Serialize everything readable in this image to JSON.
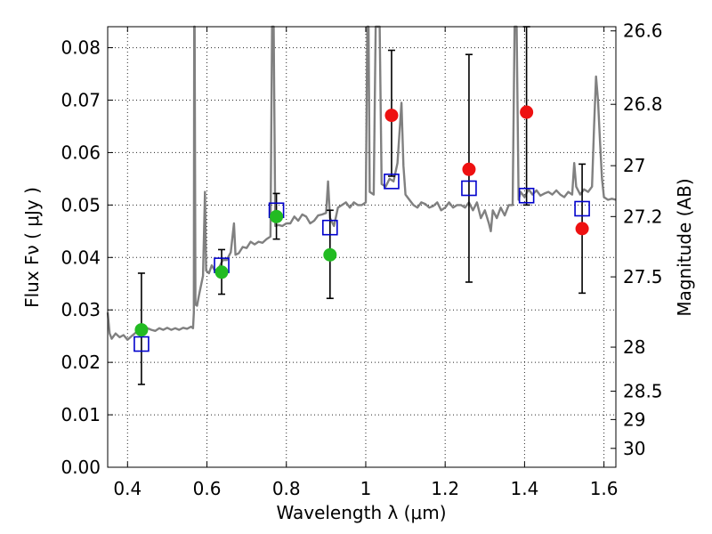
{
  "chart_data": {
    "type": "scatter",
    "xlabel": "Wavelength  λ (μm)",
    "ylabel": "Flux  Fν  ( μJy )",
    "y2label": "Magnitude (AB)",
    "xlim": [
      0.35,
      1.63
    ],
    "ylim": [
      0.0,
      0.084
    ],
    "grid": true,
    "x_ticks": [
      0.4,
      0.6,
      0.8,
      1.0,
      1.2,
      1.4,
      1.6
    ],
    "x_tick_labels": [
      "0.4",
      "0.6",
      "0.8",
      "1",
      "1.2",
      "1.4",
      "1.6"
    ],
    "y_ticks": [
      0.0,
      0.01,
      0.02,
      0.03,
      0.04,
      0.05,
      0.06,
      0.07,
      0.08
    ],
    "y_tick_labels": [
      "0.00",
      "0.01",
      "0.02",
      "0.03",
      "0.04",
      "0.05",
      "0.06",
      "0.07",
      "0.08"
    ],
    "right_axis_ticks": [
      {
        "label": "26.6",
        "flux": 0.0832
      },
      {
        "label": "26.8",
        "flux": 0.0692
      },
      {
        "label": "27",
        "flux": 0.0575
      },
      {
        "label": "27.2",
        "flux": 0.0478
      },
      {
        "label": "27.5",
        "flux": 0.0363
      },
      {
        "label": "28",
        "flux": 0.0229
      },
      {
        "label": "28.5",
        "flux": 0.0145
      },
      {
        "label": "29",
        "flux": 0.0091
      },
      {
        "label": "30",
        "flux": 0.0036
      }
    ],
    "series": [
      {
        "kind": "spectrum",
        "color": "#808080",
        "points": [
          [
            0.35,
            0.0295
          ],
          [
            0.355,
            0.0255
          ],
          [
            0.36,
            0.0245
          ],
          [
            0.37,
            0.0255
          ],
          [
            0.38,
            0.0248
          ],
          [
            0.39,
            0.0252
          ],
          [
            0.4,
            0.0243
          ],
          [
            0.41,
            0.025
          ],
          [
            0.42,
            0.0256
          ],
          [
            0.43,
            0.0262
          ],
          [
            0.44,
            0.0258
          ],
          [
            0.45,
            0.0265
          ],
          [
            0.46,
            0.0262
          ],
          [
            0.47,
            0.026
          ],
          [
            0.48,
            0.0265
          ],
          [
            0.49,
            0.0262
          ],
          [
            0.5,
            0.0266
          ],
          [
            0.51,
            0.0262
          ],
          [
            0.52,
            0.0265
          ],
          [
            0.53,
            0.0262
          ],
          [
            0.54,
            0.0266
          ],
          [
            0.55,
            0.0264
          ],
          [
            0.56,
            0.0268
          ],
          [
            0.565,
            0.0265
          ],
          [
            0.567,
            0.0295
          ],
          [
            0.568,
            0.084
          ],
          [
            0.569,
            0.084
          ],
          [
            0.571,
            0.031
          ],
          [
            0.575,
            0.0308
          ],
          [
            0.58,
            0.0328
          ],
          [
            0.59,
            0.0365
          ],
          [
            0.595,
            0.0525
          ],
          [
            0.598,
            0.0375
          ],
          [
            0.605,
            0.037
          ],
          [
            0.612,
            0.0385
          ],
          [
            0.62,
            0.0375
          ],
          [
            0.63,
            0.038
          ],
          [
            0.64,
            0.0395
          ],
          [
            0.65,
            0.0395
          ],
          [
            0.66,
            0.041
          ],
          [
            0.668,
            0.0465
          ],
          [
            0.672,
            0.0405
          ],
          [
            0.68,
            0.0408
          ],
          [
            0.69,
            0.042
          ],
          [
            0.7,
            0.0418
          ],
          [
            0.71,
            0.043
          ],
          [
            0.72,
            0.0425
          ],
          [
            0.73,
            0.043
          ],
          [
            0.74,
            0.0428
          ],
          [
            0.75,
            0.0435
          ],
          [
            0.76,
            0.044
          ],
          [
            0.764,
            0.084
          ],
          [
            0.768,
            0.084
          ],
          [
            0.772,
            0.046
          ],
          [
            0.78,
            0.0462
          ],
          [
            0.79,
            0.046
          ],
          [
            0.8,
            0.0465
          ],
          [
            0.81,
            0.0465
          ],
          [
            0.82,
            0.0478
          ],
          [
            0.83,
            0.047
          ],
          [
            0.84,
            0.0482
          ],
          [
            0.85,
            0.0478
          ],
          [
            0.86,
            0.0465
          ],
          [
            0.87,
            0.047
          ],
          [
            0.88,
            0.048
          ],
          [
            0.89,
            0.0482
          ],
          [
            0.9,
            0.0485
          ],
          [
            0.905,
            0.0545
          ],
          [
            0.91,
            0.0475
          ],
          [
            0.92,
            0.046
          ],
          [
            0.93,
            0.0495
          ],
          [
            0.94,
            0.05
          ],
          [
            0.95,
            0.0505
          ],
          [
            0.96,
            0.0495
          ],
          [
            0.97,
            0.0505
          ],
          [
            0.98,
            0.05
          ],
          [
            0.99,
            0.05
          ],
          [
            1.0,
            0.0505
          ],
          [
            1.004,
            0.084
          ],
          [
            1.007,
            0.084
          ],
          [
            1.01,
            0.0525
          ],
          [
            1.02,
            0.052
          ],
          [
            1.025,
            0.084
          ],
          [
            1.035,
            0.084
          ],
          [
            1.04,
            0.054
          ],
          [
            1.05,
            0.0535
          ],
          [
            1.06,
            0.055
          ],
          [
            1.07,
            0.0545
          ],
          [
            1.08,
            0.058
          ],
          [
            1.09,
            0.0695
          ],
          [
            1.095,
            0.0575
          ],
          [
            1.1,
            0.052
          ],
          [
            1.11,
            0.051
          ],
          [
            1.12,
            0.05
          ],
          [
            1.13,
            0.0495
          ],
          [
            1.14,
            0.0505
          ],
          [
            1.15,
            0.0502
          ],
          [
            1.16,
            0.0495
          ],
          [
            1.17,
            0.0498
          ],
          [
            1.18,
            0.0505
          ],
          [
            1.19,
            0.049
          ],
          [
            1.2,
            0.0495
          ],
          [
            1.21,
            0.0505
          ],
          [
            1.22,
            0.0495
          ],
          [
            1.23,
            0.05
          ],
          [
            1.24,
            0.05
          ],
          [
            1.25,
            0.0495
          ],
          [
            1.26,
            0.0505
          ],
          [
            1.27,
            0.049
          ],
          [
            1.28,
            0.0505
          ],
          [
            1.29,
            0.0475
          ],
          [
            1.3,
            0.049
          ],
          [
            1.31,
            0.0465
          ],
          [
            1.315,
            0.045
          ],
          [
            1.32,
            0.049
          ],
          [
            1.33,
            0.0475
          ],
          [
            1.34,
            0.0495
          ],
          [
            1.35,
            0.048
          ],
          [
            1.36,
            0.05
          ],
          [
            1.37,
            0.05
          ],
          [
            1.375,
            0.084
          ],
          [
            1.38,
            0.084
          ],
          [
            1.385,
            0.051
          ],
          [
            1.39,
            0.0525
          ],
          [
            1.4,
            0.0515
          ],
          [
            1.41,
            0.053
          ],
          [
            1.42,
            0.052
          ],
          [
            1.43,
            0.0528
          ],
          [
            1.44,
            0.0518
          ],
          [
            1.45,
            0.0522
          ],
          [
            1.46,
            0.0525
          ],
          [
            1.47,
            0.052
          ],
          [
            1.48,
            0.0528
          ],
          [
            1.49,
            0.052
          ],
          [
            1.5,
            0.0515
          ],
          [
            1.51,
            0.0525
          ],
          [
            1.52,
            0.052
          ],
          [
            1.525,
            0.058
          ],
          [
            1.53,
            0.0535
          ],
          [
            1.54,
            0.052
          ],
          [
            1.55,
            0.053
          ],
          [
            1.56,
            0.0525
          ],
          [
            1.57,
            0.0535
          ],
          [
            1.575,
            0.065
          ],
          [
            1.58,
            0.0745
          ],
          [
            1.585,
            0.07
          ],
          [
            1.59,
            0.062
          ],
          [
            1.595,
            0.055
          ],
          [
            1.6,
            0.0515
          ],
          [
            1.61,
            0.051
          ],
          [
            1.62,
            0.0512
          ],
          [
            1.63,
            0.051
          ]
        ]
      },
      {
        "kind": "model_photometry",
        "marker": "open-square",
        "color": "#0000cc",
        "points": [
          [
            0.435,
            0.0235
          ],
          [
            0.637,
            0.0385
          ],
          [
            0.775,
            0.049
          ],
          [
            0.91,
            0.0457
          ],
          [
            1.065,
            0.0545
          ],
          [
            1.26,
            0.0532
          ],
          [
            1.405,
            0.0518
          ],
          [
            1.545,
            0.0493
          ]
        ]
      },
      {
        "kind": "measured_flux",
        "marker": "filled-circle",
        "color": "#22bb22",
        "points": [
          {
            "x": 0.435,
            "y": 0.0262,
            "err_low": 0.0158,
            "err_high": 0.037
          },
          {
            "x": 0.637,
            "y": 0.0372,
            "err_low": 0.033,
            "err_high": 0.0415
          },
          {
            "x": 0.775,
            "y": 0.0478,
            "err_low": 0.0435,
            "err_high": 0.0522
          },
          {
            "x": 0.91,
            "y": 0.0405,
            "err_low": 0.0322,
            "err_high": 0.049
          }
        ]
      },
      {
        "kind": "measured_flux",
        "marker": "filled-circle",
        "color": "#ee1111",
        "points": [
          {
            "x": 1.065,
            "y": 0.0671,
            "err_low": 0.0555,
            "err_high": 0.0795
          },
          {
            "x": 1.26,
            "y": 0.0568,
            "err_low": 0.0353,
            "err_high": 0.0787
          },
          {
            "x": 1.405,
            "y": 0.0677,
            "err_low": 0.05,
            "err_high": 0.084
          },
          {
            "x": 1.545,
            "y": 0.0455,
            "err_low": 0.0332,
            "err_high": 0.0578
          }
        ]
      }
    ]
  }
}
